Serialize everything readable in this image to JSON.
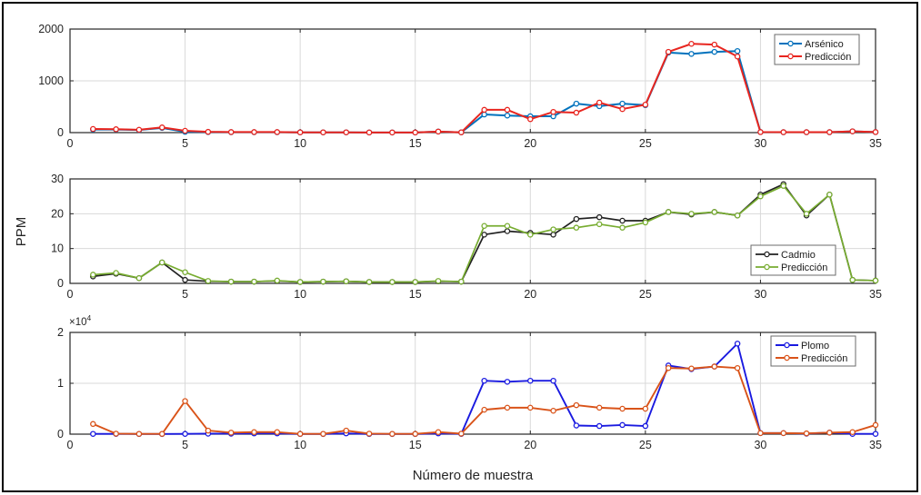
{
  "figure": {
    "xlabel": "Número de muestra",
    "ylabel": "PPM",
    "background": "#ffffff",
    "border_color": "#000000",
    "axis_color": "#262626",
    "grid_color": "#d9d9d9",
    "legend_border_color": "#6b6b6b"
  },
  "chart_data": [
    {
      "type": "line",
      "title": "",
      "x": [
        1,
        2,
        3,
        4,
        5,
        6,
        7,
        8,
        9,
        10,
        11,
        12,
        13,
        14,
        15,
        16,
        17,
        18,
        19,
        20,
        21,
        22,
        23,
        24,
        25,
        26,
        27,
        28,
        29,
        30,
        31,
        32,
        33,
        34,
        35
      ],
      "xlim": [
        0,
        35
      ],
      "xticks": [
        0,
        5,
        10,
        15,
        20,
        25,
        30,
        35
      ],
      "ylim": [
        0,
        2000
      ],
      "yticks": [
        0,
        1000,
        2000
      ],
      "ytick_labels": [
        "0",
        "1000",
        "2000"
      ],
      "grid": true,
      "legend_position": "top-right",
      "series": [
        {
          "name": "Arsénico",
          "color": "#0072bd",
          "marker": "circle",
          "values": [
            60,
            60,
            50,
            90,
            15,
            10,
            8,
            8,
            8,
            5,
            5,
            5,
            3,
            3,
            3,
            20,
            5,
            350,
            330,
            315,
            315,
            560,
            510,
            560,
            530,
            1545,
            1520,
            1560,
            1575,
            10,
            8,
            8,
            8,
            25,
            10
          ]
        },
        {
          "name": "Predicción",
          "color": "#e8251f",
          "marker": "circle",
          "values": [
            70,
            65,
            55,
            100,
            35,
            15,
            10,
            10,
            10,
            5,
            5,
            5,
            3,
            3,
            3,
            20,
            5,
            440,
            440,
            260,
            400,
            385,
            580,
            455,
            540,
            1560,
            1715,
            1700,
            1470,
            10,
            8,
            8,
            8,
            25,
            10
          ]
        }
      ]
    },
    {
      "type": "line",
      "title": "",
      "x": [
        1,
        2,
        3,
        4,
        5,
        6,
        7,
        8,
        9,
        10,
        11,
        12,
        13,
        14,
        15,
        16,
        17,
        18,
        19,
        20,
        21,
        22,
        23,
        24,
        25,
        26,
        27,
        28,
        29,
        30,
        31,
        32,
        33,
        34,
        35
      ],
      "xlim": [
        0,
        35
      ],
      "xticks": [
        0,
        5,
        10,
        15,
        20,
        25,
        30,
        35
      ],
      "ylim": [
        0,
        30
      ],
      "yticks": [
        0,
        10,
        20,
        30
      ],
      "ytick_labels": [
        "0",
        "10",
        "20",
        "30"
      ],
      "grid": true,
      "legend_position": "bottom-right",
      "series": [
        {
          "name": "Cadmio",
          "color": "#212121",
          "marker": "circle",
          "values": [
            2,
            2.8,
            1.5,
            6,
            1,
            0.6,
            0.5,
            0.5,
            0.7,
            0.4,
            0.5,
            0.6,
            0.4,
            0.4,
            0.4,
            0.6,
            0.5,
            14,
            15,
            14.5,
            14,
            18.5,
            19,
            18,
            18,
            20.5,
            19.8,
            20.5,
            19.5,
            25.5,
            28.5,
            19.5,
            25.5,
            1,
            0.8
          ]
        },
        {
          "name": "Predicción",
          "color": "#77ac30",
          "marker": "circle",
          "values": [
            2.5,
            3,
            1.5,
            6,
            3.2,
            0.7,
            0.5,
            0.5,
            0.8,
            0.4,
            0.5,
            0.6,
            0.4,
            0.4,
            0.4,
            0.7,
            0.5,
            16.5,
            16.5,
            14,
            15.5,
            16,
            17,
            16,
            17.5,
            20.5,
            20,
            20.5,
            19.5,
            25,
            28,
            20,
            25.5,
            1,
            0.8
          ]
        }
      ]
    },
    {
      "type": "line",
      "title": "",
      "x": [
        1,
        2,
        3,
        4,
        5,
        6,
        7,
        8,
        9,
        10,
        11,
        12,
        13,
        14,
        15,
        16,
        17,
        18,
        19,
        20,
        21,
        22,
        23,
        24,
        25,
        26,
        27,
        28,
        29,
        30,
        31,
        32,
        33,
        34,
        35
      ],
      "xlim": [
        0,
        35
      ],
      "xticks": [
        0,
        5,
        10,
        15,
        20,
        25,
        30,
        35
      ],
      "ylim": [
        0,
        20000
      ],
      "yticks": [
        0,
        10000,
        20000
      ],
      "ytick_labels": [
        "0",
        "1",
        "2"
      ],
      "exponent": {
        "base": "×10",
        "power": "4"
      },
      "grid": true,
      "legend_position": "top-right",
      "series": [
        {
          "name": "Plomo",
          "color": "#1a1ae0",
          "marker": "circle",
          "values": [
            50,
            50,
            30,
            30,
            50,
            100,
            100,
            150,
            150,
            30,
            30,
            150,
            30,
            30,
            30,
            150,
            50,
            10500,
            10300,
            10500,
            10500,
            1700,
            1600,
            1800,
            1600,
            13500,
            12800,
            13300,
            17800,
            200,
            200,
            100,
            300,
            50,
            50
          ]
        },
        {
          "name": "Predicción",
          "color": "#d95319",
          "marker": "circle",
          "values": [
            2000,
            100,
            50,
            50,
            6500,
            700,
            300,
            400,
            400,
            50,
            50,
            700,
            100,
            50,
            50,
            400,
            100,
            4800,
            5200,
            5200,
            4600,
            5700,
            5200,
            5000,
            5000,
            13000,
            12900,
            13300,
            13000,
            200,
            200,
            150,
            300,
            400,
            1800
          ]
        }
      ]
    }
  ]
}
